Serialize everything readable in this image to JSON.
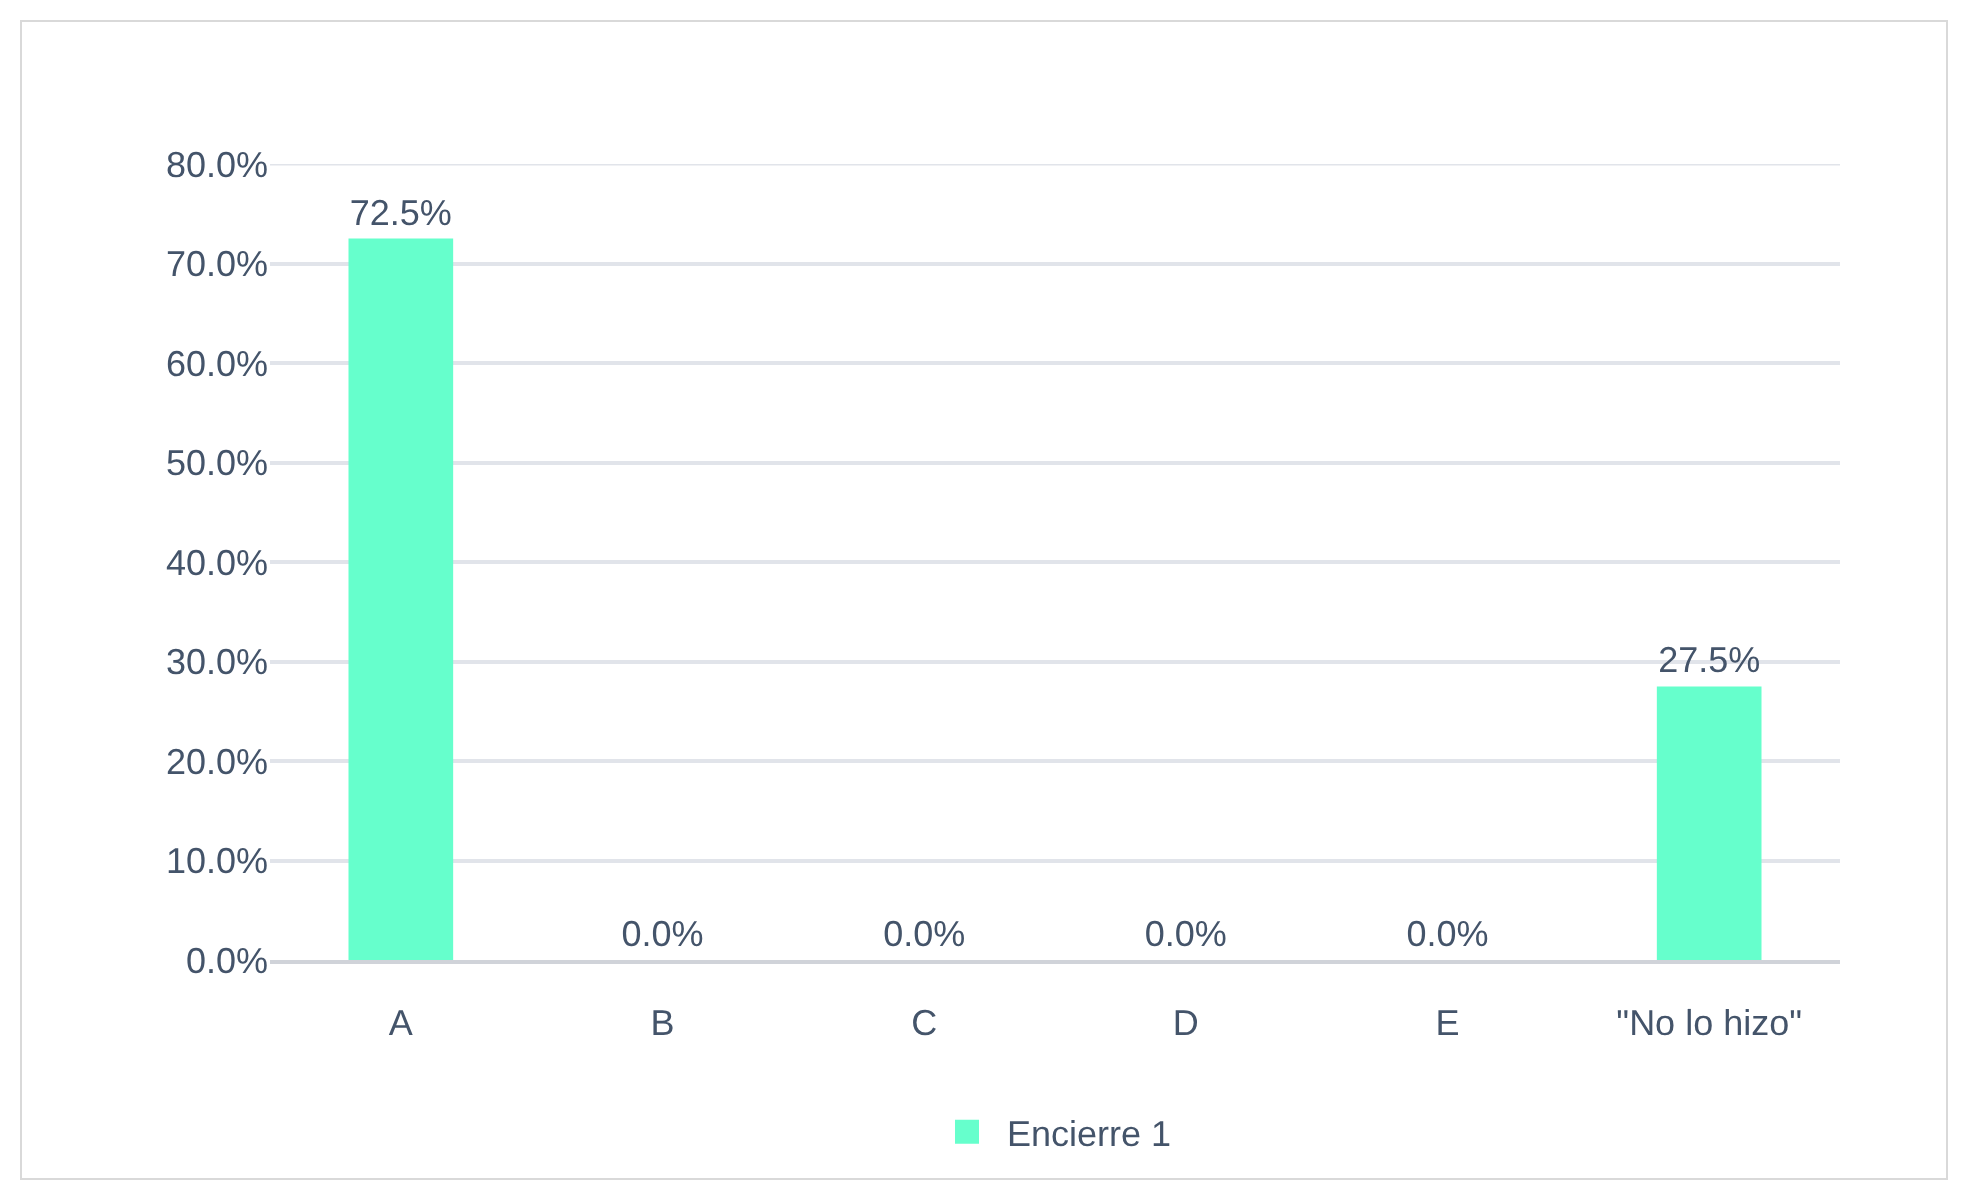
{
  "chart_data": {
    "type": "bar",
    "categories": [
      "A",
      "B",
      "C",
      "D",
      "E",
      "\"No lo hizo\""
    ],
    "series": [
      {
        "name": "Encierre 1",
        "color": "#66ffcc",
        "values": [
          72.5,
          0,
          0,
          0,
          0,
          27.5
        ],
        "value_labels": [
          "72.5%",
          "0.0%",
          "0.0%",
          "0.0%",
          "0.0%",
          "27.5%"
        ]
      }
    ],
    "ylim": [
      0,
      80
    ],
    "yticks": [
      {
        "value": 0,
        "label": "0.0%"
      },
      {
        "value": 10,
        "label": "10.0%"
      },
      {
        "value": 20,
        "label": "20.0%"
      },
      {
        "value": 30,
        "label": "30.0%"
      },
      {
        "value": 40,
        "label": "40.0%"
      },
      {
        "value": 50,
        "label": "50.0%"
      },
      {
        "value": 60,
        "label": "60.0%"
      },
      {
        "value": 70,
        "label": "70.0%"
      },
      {
        "value": 80,
        "label": "80.0%"
      }
    ],
    "grid": "y",
    "legend": "bottom"
  }
}
